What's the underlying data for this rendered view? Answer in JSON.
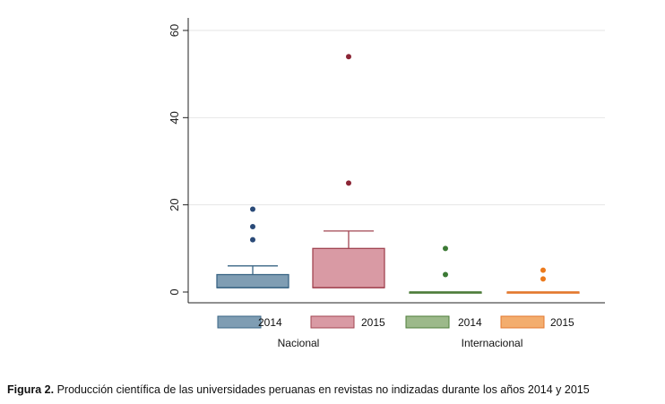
{
  "chart_data": {
    "type": "box",
    "ylim": [
      0,
      60
    ],
    "yticks": [
      0,
      20,
      40,
      60
    ],
    "grid": true,
    "groups": [
      "Nacional",
      "Internacional"
    ],
    "series": [
      {
        "name": "2014",
        "group": "Nacional",
        "color": "#7f9db3",
        "edge": "#3a6585",
        "whisker_low": 1,
        "q1": 1,
        "median": 1,
        "q3": 4,
        "whisker_high": 6,
        "outliers": [
          12,
          15,
          19
        ],
        "outlier_color": "#2a4a78"
      },
      {
        "name": "2015",
        "group": "Nacional",
        "color": "#d99aa4",
        "edge": "#a24552",
        "whisker_low": 1,
        "q1": 1,
        "median": 1,
        "q3": 10,
        "whisker_high": 14,
        "outliers": [
          25,
          54
        ],
        "outlier_color": "#8b2535"
      },
      {
        "name": "2014",
        "group": "Internacional",
        "color": "#9cb98a",
        "edge": "#4e7d3a",
        "whisker_low": 0,
        "q1": 0,
        "median": 0,
        "q3": 0,
        "whisker_high": 0,
        "outliers": [
          4,
          10
        ],
        "outlier_color": "#3c7a35"
      },
      {
        "name": "2015",
        "group": "Internacional",
        "color": "#f3ad6e",
        "edge": "#e3782f",
        "whisker_low": 0,
        "q1": 0,
        "median": 0,
        "q3": 0,
        "whisker_high": 0,
        "outliers": [
          3,
          5
        ],
        "outlier_color": "#ec7a1c"
      }
    ],
    "legend_position": "bottom"
  },
  "caption": {
    "label": "Figura 2.",
    "text": " Producción científica de las universidades peruanas en revistas no indizadas durante los años 2014 y 2015"
  }
}
